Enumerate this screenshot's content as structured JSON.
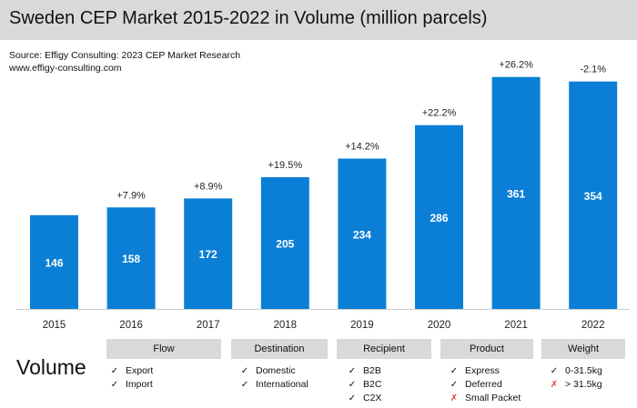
{
  "header": {
    "title": "Sweden CEP Market 2015-2022 in Volume (million parcels)",
    "source": "Source: Effigy Consulting: 2023 CEP Market Research",
    "website": "www.effigy-consulting.com"
  },
  "chart_data": {
    "type": "bar",
    "title": "Sweden CEP Market 2015-2022 in Volume (million parcels)",
    "categories": [
      "2015",
      "2016",
      "2017",
      "2018",
      "2019",
      "2020",
      "2021",
      "2022"
    ],
    "values": [
      146,
      158,
      172,
      205,
      234,
      286,
      361,
      354
    ],
    "value_labels": [
      "146",
      "158",
      "172",
      "205",
      "234",
      "286",
      "361",
      "354"
    ],
    "growth_labels": [
      "",
      "+7.9%",
      "+8.9%",
      "+19.5%",
      "+14.2%",
      "+22.2%",
      "+26.2%",
      "-2.1%"
    ],
    "ylim": [
      0,
      400
    ],
    "xlabel": "",
    "ylabel": "",
    "bar_color": "#0b7fd6",
    "value_label_color": "#ffffff",
    "grid": false,
    "legend": "none"
  },
  "segmentation": {
    "volume_label": "Volume",
    "categories": [
      {
        "label": "Flow",
        "items": [
          {
            "text": "Export",
            "mark": "check"
          },
          {
            "text": "Import",
            "mark": "check"
          }
        ]
      },
      {
        "label": "Destination",
        "items": [
          {
            "text": "Domestic",
            "mark": "check"
          },
          {
            "text": "International",
            "mark": "check"
          }
        ]
      },
      {
        "label": "Recipient",
        "items": [
          {
            "text": "B2B",
            "mark": "check"
          },
          {
            "text": "B2C",
            "mark": "check"
          },
          {
            "text": "C2X",
            "mark": "check"
          }
        ]
      },
      {
        "label": "Product",
        "items": [
          {
            "text": "Express",
            "mark": "check"
          },
          {
            "text": "Deferred",
            "mark": "check"
          },
          {
            "text": "Small Packet",
            "mark": "cross"
          }
        ]
      },
      {
        "label": "Weight",
        "items": [
          {
            "text": "0-31.5kg",
            "mark": "check"
          },
          {
            "text": "> 31.5kg",
            "mark": "cross"
          }
        ]
      }
    ],
    "mark_glyphs": {
      "check": "✓",
      "cross": "✗"
    },
    "mark_colors": {
      "check": "#111111",
      "cross": "#e0403a"
    }
  }
}
